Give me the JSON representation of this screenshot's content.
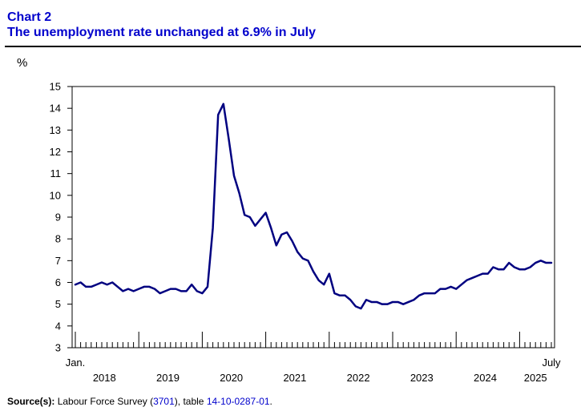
{
  "header": {
    "chart_label": "Chart 2",
    "title": "The unemployment rate unchanged at 6.9% in July"
  },
  "source": {
    "label": "Source(s):",
    "text_1": "Labour Force Survey (",
    "survey_code": "3701",
    "text_2": "), table ",
    "table_id": "14-10-0287-01",
    "text_3": "."
  },
  "colors": {
    "title": "#0000cc",
    "line": "#000080"
  },
  "chart_data": {
    "type": "line",
    "ylabel": "%",
    "ylim": [
      3,
      15
    ],
    "yticks": [
      3,
      4,
      5,
      6,
      7,
      8,
      9,
      10,
      11,
      12,
      13,
      14,
      15
    ],
    "grid": false,
    "x_start_label": "Jan.",
    "x_end_label": "July",
    "x_year_labels": [
      "2018",
      "2019",
      "2020",
      "2021",
      "2022",
      "2023",
      "2024",
      "2025"
    ],
    "x_range": [
      "2018-01",
      "2025-07"
    ],
    "series": [
      {
        "values": [
          5.9,
          6.0,
          5.8,
          5.8,
          5.9,
          6.0,
          5.9,
          6.0,
          5.8,
          5.6,
          5.7,
          5.6,
          5.7,
          5.8,
          5.8,
          5.7,
          5.5,
          5.6,
          5.7,
          5.7,
          5.6,
          5.6,
          5.9,
          5.6,
          5.5,
          5.8,
          8.5,
          13.7,
          14.2,
          12.6,
          10.9,
          10.1,
          9.1,
          9.0,
          8.6,
          8.9,
          9.2,
          8.5,
          7.7,
          8.2,
          8.3,
          7.9,
          7.4,
          7.1,
          7.0,
          6.5,
          6.1,
          5.9,
          6.4,
          5.5,
          5.4,
          5.4,
          5.2,
          4.9,
          4.8,
          5.2,
          5.1,
          5.1,
          5.0,
          5.0,
          5.1,
          5.1,
          5.0,
          5.1,
          5.2,
          5.4,
          5.5,
          5.5,
          5.5,
          5.7,
          5.7,
          5.8,
          5.7,
          5.9,
          6.1,
          6.2,
          6.3,
          6.4,
          6.4,
          6.7,
          6.6,
          6.6,
          6.9,
          6.7,
          6.6,
          6.6,
          6.7,
          6.9,
          7.0,
          6.9,
          6.9
        ]
      }
    ]
  }
}
